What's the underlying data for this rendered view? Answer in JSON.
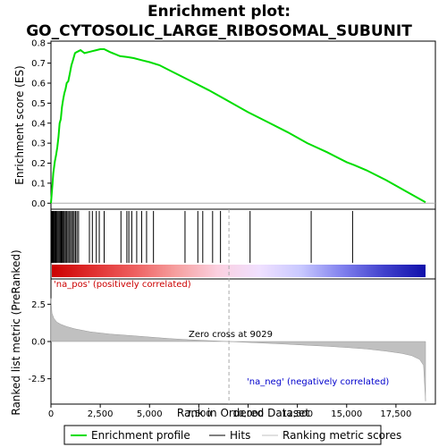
{
  "chart_data": {
    "type": "line",
    "title_line1": "Enrichment plot:",
    "title_line2": "GO_CYTOSOLIC_LARGE_RIBOSOMAL_SUBUNIT",
    "xlabel": "Rank in Ordered Dataset",
    "ylabel_top": "Enrichment score (ES)",
    "ylabel_bottom": "Ranked list metric (PreRanked)",
    "xlim": [
      0,
      19500
    ],
    "es_ylim": [
      -0.03,
      0.81
    ],
    "metric_ylim": [
      -4.2,
      4.2
    ],
    "x_ticks": [
      0,
      2500,
      5000,
      7500,
      10000,
      12500,
      15000,
      17500
    ],
    "x_tick_labels": [
      "0",
      "2,500",
      "5,000",
      "7,500",
      "10,000",
      "12,500",
      "15,000",
      "17,500"
    ],
    "es_ticks": [
      0.0,
      0.1,
      0.2,
      0.3,
      0.4,
      0.5,
      0.6,
      0.7,
      0.8
    ],
    "es_tick_labels": [
      "0.0",
      "0.1",
      "0.2",
      "0.3",
      "0.4",
      "0.5",
      "0.6",
      "0.7",
      "0.8"
    ],
    "metric_ticks": [
      2.5,
      0.0,
      -2.5
    ],
    "metric_tick_labels": [
      "2.5",
      "0.0",
      "-2.5"
    ],
    "zero_cross": 9029,
    "zero_cross_label": "Zero cross at 9029",
    "pos_label": "'na_pos' (positively correlated)",
    "neg_label": "'na_neg' (negatively correlated)",
    "enrichment_profile": {
      "x": [
        0,
        40,
        80,
        120,
        160,
        200,
        260,
        320,
        380,
        440,
        500,
        560,
        620,
        680,
        740,
        800,
        880,
        960,
        1040,
        1100,
        1160,
        1220,
        1300,
        1400,
        1500,
        1700,
        1900,
        2100,
        2300,
        2500,
        2700,
        3000,
        3500,
        3900,
        4200,
        4600,
        5000,
        5500,
        6000,
        7000,
        8000,
        9000,
        10000,
        11000,
        12000,
        13000,
        14000,
        15000,
        15400,
        16000,
        17000,
        18000,
        19000
      ],
      "y": [
        0.0,
        0.05,
        0.1,
        0.15,
        0.18,
        0.21,
        0.24,
        0.28,
        0.33,
        0.4,
        0.42,
        0.48,
        0.52,
        0.55,
        0.57,
        0.6,
        0.61,
        0.65,
        0.69,
        0.71,
        0.73,
        0.75,
        0.755,
        0.76,
        0.765,
        0.75,
        0.755,
        0.76,
        0.765,
        0.77,
        0.77,
        0.755,
        0.735,
        0.73,
        0.725,
        0.715,
        0.705,
        0.69,
        0.665,
        0.615,
        0.565,
        0.51,
        0.455,
        0.405,
        0.355,
        0.3,
        0.255,
        0.205,
        0.19,
        0.165,
        0.115,
        0.06,
        0.005
      ]
    },
    "hits": [
      30,
      60,
      90,
      130,
      170,
      210,
      250,
      300,
      350,
      400,
      450,
      500,
      540,
      580,
      630,
      680,
      740,
      800,
      860,
      920,
      990,
      1050,
      1120,
      1180,
      1250,
      1320,
      1400,
      1950,
      2100,
      2300,
      2450,
      2700,
      3550,
      3850,
      3950,
      4100,
      4350,
      4600,
      4850,
      5200,
      6800,
      7450,
      7700,
      8200,
      8600,
      10100,
      13200,
      15300
    ],
    "metric_curve": {
      "x": [
        0,
        50,
        150,
        300,
        500,
        800,
        1200,
        2000,
        3000,
        4000,
        5000,
        6000,
        7000,
        8000,
        9029,
        10000,
        11000,
        12000,
        13000,
        14000,
        15000,
        16000,
        17000,
        17800,
        18300,
        18700,
        18900,
        19000
      ],
      "y": [
        2.9,
        1.9,
        1.55,
        1.3,
        1.15,
        1.0,
        0.85,
        0.65,
        0.5,
        0.4,
        0.3,
        0.2,
        0.12,
        0.06,
        0.0,
        -0.06,
        -0.12,
        -0.18,
        -0.25,
        -0.32,
        -0.4,
        -0.5,
        -0.65,
        -0.8,
        -0.95,
        -1.2,
        -1.6,
        -4.0
      ]
    },
    "colorbar_gradient": [
      "#cc0000",
      "#e03030",
      "#ee6060",
      "#f6a0a0",
      "#fbd0e0",
      "#f0e0ff",
      "#c8c8ff",
      "#8080ee",
      "#4040cc",
      "#1010aa"
    ],
    "legend": [
      "Enrichment profile",
      "Hits",
      "Ranking metric scores"
    ],
    "colors": {
      "profile": "#00dd00",
      "hits": "#000000",
      "metric": "#c0c0c0",
      "zero_line": "#aaaaaa"
    }
  }
}
